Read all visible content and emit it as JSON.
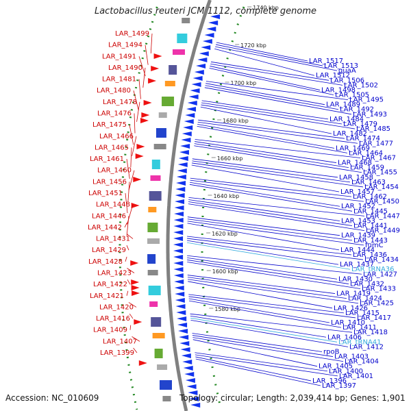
{
  "title": "Lactobacillus reuteri JCM 1112, complete genome",
  "accession": "Accession: NC_010609",
  "summary": "Topology: circular; Length: 2,039,414 bp; Genes: 1,901",
  "colors": {
    "backbone": "#808080",
    "left_label": "#cc0000",
    "right_label": "#0000cc",
    "rna_label": "#33aadd",
    "forward_gene": "#ee1111",
    "reverse_gene": "#1133ee",
    "gc_dots": "#228822"
  },
  "ticks": [
    "1740 kbp",
    "1720 kbp",
    "1700 kbp",
    "1680 kbp",
    "1660 kbp",
    "1640 kbp",
    "1620 kbp",
    "1600 kbp",
    "1580 kbp"
  ],
  "left_labels": [
    "LAR_1499",
    "LAR_1494",
    "LAR_1491",
    "LAR_1490",
    "LAR_1481",
    "LAR_1480",
    "LAR_1478",
    "LAR_1476",
    "LAR_1475",
    "LAR_1466",
    "LAR_1465",
    "LAR_1461",
    "LAR_1460",
    "LAR_1456",
    "LAR_1451",
    "LAR_1448",
    "LAR_1446",
    "LAR_1442",
    "LAR_1431",
    "LAR_1429",
    "LAR_1428",
    "LAR_1423",
    "LAR_1422",
    "LAR_1421",
    "LAR_1420",
    "LAR_1416",
    "LAR_1409",
    "LAR_1407",
    "LAR_1399"
  ],
  "right_labels": [
    {
      "text": "LAR_1517",
      "kind": "gene"
    },
    {
      "text": "LAR_1513",
      "kind": "gene"
    },
    {
      "text": "guaA",
      "kind": "gene"
    },
    {
      "text": "LAR_1512",
      "kind": "gene"
    },
    {
      "text": "LAR_1506",
      "kind": "gene"
    },
    {
      "text": "LAR_1502",
      "kind": "gene"
    },
    {
      "text": "LAR_1498",
      "kind": "gene"
    },
    {
      "text": "LAR_1505",
      "kind": "gene"
    },
    {
      "text": "LAR_1495",
      "kind": "gene"
    },
    {
      "text": "LAR_1489",
      "kind": "gene"
    },
    {
      "text": "LAR_1492",
      "kind": "gene"
    },
    {
      "text": "LAR_1493",
      "kind": "gene"
    },
    {
      "text": "LAR_1484",
      "kind": "gene"
    },
    {
      "text": "LAR_1479",
      "kind": "gene"
    },
    {
      "text": "LAR_1485",
      "kind": "gene"
    },
    {
      "text": "LAR_1482",
      "kind": "gene"
    },
    {
      "text": "LAR_1474",
      "kind": "gene"
    },
    {
      "text": "LAR_1477",
      "kind": "gene"
    },
    {
      "text": "LAR_1469",
      "kind": "gene"
    },
    {
      "text": "LAR_1464",
      "kind": "gene"
    },
    {
      "text": "LAR_1467",
      "kind": "gene"
    },
    {
      "text": "LAR_1468",
      "kind": "gene"
    },
    {
      "text": "LAR_1459",
      "kind": "gene"
    },
    {
      "text": "LAR_1455",
      "kind": "gene"
    },
    {
      "text": "LAR_1458",
      "kind": "gene"
    },
    {
      "text": "LAR_1463",
      "kind": "gene"
    },
    {
      "text": "LAR_1454",
      "kind": "gene"
    },
    {
      "text": "LAR_1457",
      "kind": "gene"
    },
    {
      "text": "LAR_1462",
      "kind": "gene"
    },
    {
      "text": "LAR_1450",
      "kind": "gene"
    },
    {
      "text": "LAR_1452",
      "kind": "gene"
    },
    {
      "text": "LAR_1445",
      "kind": "gene"
    },
    {
      "text": "LAR_1447",
      "kind": "gene"
    },
    {
      "text": "LAR_1453",
      "kind": "gene"
    },
    {
      "text": "LAR_1441",
      "kind": "gene"
    },
    {
      "text": "LAR_1449",
      "kind": "gene"
    },
    {
      "text": "LAR_1439",
      "kind": "gene"
    },
    {
      "text": "LAR_1443",
      "kind": "gene"
    },
    {
      "text": "fumC",
      "kind": "gene"
    },
    {
      "text": "LAR_1444",
      "kind": "gene"
    },
    {
      "text": "LAR_1436",
      "kind": "gene"
    },
    {
      "text": "LAR_1434",
      "kind": "gene"
    },
    {
      "text": "LAR_1437",
      "kind": "gene"
    },
    {
      "text": "LAR_tRNA36",
      "kind": "rna"
    },
    {
      "text": "LAR_1427",
      "kind": "gene"
    },
    {
      "text": "LAR_1430",
      "kind": "gene"
    },
    {
      "text": "LAR_1432",
      "kind": "gene"
    },
    {
      "text": "LAR_1433",
      "kind": "gene"
    },
    {
      "text": "LAR_1419",
      "kind": "gene"
    },
    {
      "text": "LAR_1424",
      "kind": "gene"
    },
    {
      "text": "LAR_1425",
      "kind": "gene"
    },
    {
      "text": "LAR_1426",
      "kind": "gene"
    },
    {
      "text": "LAR_1415",
      "kind": "gene"
    },
    {
      "text": "LAR_1417",
      "kind": "gene"
    },
    {
      "text": "LAR_1410",
      "kind": "gene"
    },
    {
      "text": "LAR_1411",
      "kind": "gene"
    },
    {
      "text": "LAR_1418",
      "kind": "gene"
    },
    {
      "text": "LAR_1406",
      "kind": "gene"
    },
    {
      "text": "LAR_tRNA41",
      "kind": "rna"
    },
    {
      "text": "LAR_1412",
      "kind": "gene"
    },
    {
      "text": "rpoB",
      "kind": "gene"
    },
    {
      "text": "LAR_1403",
      "kind": "gene"
    },
    {
      "text": "LAR_1404",
      "kind": "gene"
    },
    {
      "text": "LAR_1405",
      "kind": "gene"
    },
    {
      "text": "LAR_1400",
      "kind": "gene"
    },
    {
      "text": "LAR_1401",
      "kind": "gene"
    },
    {
      "text": "LAR_1396",
      "kind": "gene"
    },
    {
      "text": "LAR_1397",
      "kind": "gene"
    }
  ]
}
